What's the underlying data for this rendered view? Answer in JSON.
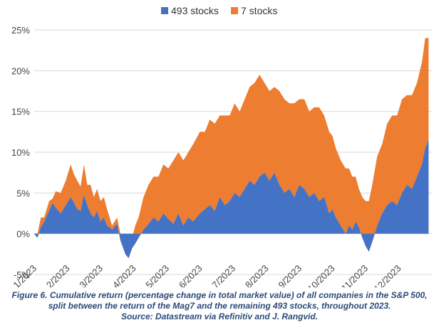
{
  "chart_data": {
    "type": "area",
    "stacked": true,
    "legend_position": "top-center",
    "grid": true,
    "x_ticks": [
      "1/2023",
      "2/2023",
      "3/2023",
      "4/2023",
      "5/2023",
      "6/2023",
      "7/2023",
      "8/2023",
      "9/2023",
      "10/2023",
      "11/2023",
      "12/2023"
    ],
    "y_ticks": [
      "25%",
      "20%",
      "15%",
      "10%",
      "5%",
      "0%",
      "-5%"
    ],
    "ylim": [
      -5,
      25
    ],
    "x_range": [
      0,
      12
    ],
    "series": [
      {
        "name": "493 stocks",
        "color": "#4472c4",
        "x": [
          0,
          0.1,
          0.2,
          0.3,
          0.45,
          0.55,
          0.65,
          0.8,
          0.95,
          1.1,
          1.2,
          1.3,
          1.4,
          1.5,
          1.6,
          1.7,
          1.8,
          1.9,
          2.0,
          2.1,
          2.2,
          2.35,
          2.5,
          2.6,
          2.75,
          2.85,
          2.95,
          3.05,
          3.15,
          3.3,
          3.45,
          3.6,
          3.75,
          3.9,
          4.05,
          4.2,
          4.35,
          4.5,
          4.65,
          4.8,
          5.0,
          5.15,
          5.3,
          5.45,
          5.6,
          5.75,
          5.9,
          6.05,
          6.2,
          6.35,
          6.5,
          6.65,
          6.8,
          6.95,
          7.1,
          7.25,
          7.4,
          7.55,
          7.7,
          7.85,
          8.0,
          8.15,
          8.3,
          8.45,
          8.6,
          8.75,
          8.9,
          9.0,
          9.1,
          9.25,
          9.4,
          9.5,
          9.6,
          9.7,
          9.8,
          9.9,
          10.0,
          10.1,
          10.2,
          10.35,
          10.5,
          10.65,
          10.8,
          10.95,
          11.1,
          11.25,
          11.4,
          11.55,
          11.7,
          11.8,
          11.9
        ],
        "values": [
          0,
          -0.5,
          0.8,
          1.5,
          2.8,
          3.8,
          3.2,
          2.5,
          3.5,
          4.5,
          3.8,
          3.0,
          2.8,
          4.8,
          3.5,
          2.5,
          2.0,
          2.8,
          1.5,
          2.0,
          1.0,
          0.5,
          1.2,
          -0.8,
          -2.5,
          -3.0,
          -1.8,
          -1.2,
          -0.5,
          0.5,
          1.2,
          2.0,
          1.5,
          2.5,
          1.8,
          1.2,
          2.5,
          1.0,
          2.0,
          1.5,
          2.5,
          3.0,
          3.5,
          2.8,
          4.5,
          3.5,
          4.0,
          5.0,
          4.5,
          5.5,
          6.5,
          6.0,
          7.0,
          7.5,
          6.5,
          7.5,
          6.0,
          5.0,
          5.5,
          4.5,
          6.0,
          5.5,
          4.5,
          5.0,
          4.0,
          4.5,
          2.5,
          3.0,
          2.0,
          1.0,
          0.0,
          1.0,
          0.5,
          1.5,
          0.8,
          -0.5,
          -1.5,
          -2.2,
          -1.0,
          1.0,
          2.5,
          3.5,
          4.0,
          3.5,
          5.0,
          6.0,
          5.5,
          7.0,
          8.5,
          10.5,
          11.5
        ]
      },
      {
        "name": "7 stocks",
        "color": "#ed7d31",
        "x": [
          0,
          0.1,
          0.2,
          0.3,
          0.45,
          0.55,
          0.65,
          0.8,
          0.95,
          1.1,
          1.2,
          1.3,
          1.4,
          1.5,
          1.6,
          1.7,
          1.8,
          1.9,
          2.0,
          2.1,
          2.2,
          2.35,
          2.5,
          2.6,
          2.75,
          2.85,
          2.95,
          3.05,
          3.15,
          3.3,
          3.45,
          3.6,
          3.75,
          3.9,
          4.05,
          4.2,
          4.35,
          4.5,
          4.65,
          4.8,
          5.0,
          5.15,
          5.3,
          5.45,
          5.6,
          5.75,
          5.9,
          6.05,
          6.2,
          6.35,
          6.5,
          6.65,
          6.8,
          6.95,
          7.1,
          7.25,
          7.4,
          7.55,
          7.7,
          7.85,
          8.0,
          8.15,
          8.3,
          8.45,
          8.6,
          8.75,
          8.9,
          9.0,
          9.1,
          9.25,
          9.4,
          9.5,
          9.6,
          9.7,
          9.8,
          9.9,
          10.0,
          10.1,
          10.2,
          10.35,
          10.5,
          10.65,
          10.8,
          10.95,
          11.1,
          11.25,
          11.4,
          11.55,
          11.7,
          11.8,
          11.9
        ],
        "values": [
          0,
          0.5,
          1.2,
          0.5,
          1.2,
          0.5,
          2.0,
          2.5,
          3.0,
          4.0,
          3.5,
          3.5,
          3.0,
          3.7,
          2.5,
          3.5,
          2.5,
          2.7,
          2.5,
          2.5,
          2.0,
          0.5,
          0.8,
          0.8,
          1.5,
          2.0,
          1.3,
          2.2,
          2.5,
          4.0,
          4.8,
          5.0,
          5.5,
          6.0,
          6.2,
          7.8,
          7.5,
          8.0,
          8.0,
          9.5,
          10.0,
          9.5,
          10.5,
          10.7,
          10.0,
          11.0,
          10.5,
          11.0,
          10.5,
          11.0,
          11.5,
          12.5,
          12.5,
          11.0,
          11.0,
          10.5,
          11.5,
          11.5,
          10.5,
          11.5,
          10.5,
          11.0,
          10.5,
          10.5,
          11.5,
          10.0,
          10.0,
          9.0,
          8.5,
          8.0,
          8.0,
          7.0,
          6.5,
          5.5,
          4.7,
          5.0,
          5.5,
          6.2,
          7.0,
          8.5,
          8.5,
          10.0,
          10.5,
          11.0,
          11.5,
          11.0,
          11.5,
          11.5,
          12.5,
          13.5,
          12.5
        ]
      }
    ]
  },
  "caption": {
    "line1": "Figure 6. Cumulative return (percentage change in total market value) of all companies in the S&P 500,",
    "line2": "split between the return of the Mag7 and the remaining 493 stocks, throughout 2023.",
    "line3": "Source: Datastream via Refinitiv and J. Rangvid."
  }
}
